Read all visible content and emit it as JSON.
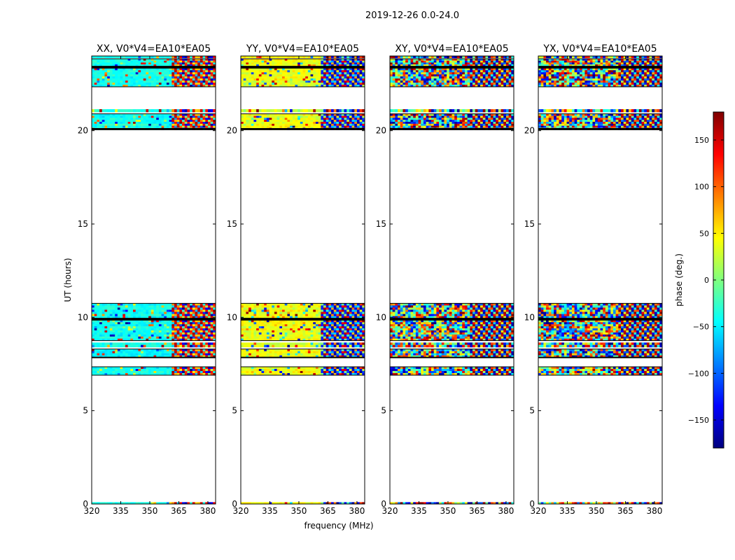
{
  "title": "2019-12-26 0.0-24.0",
  "xlabel": "frequency (MHz)",
  "ylabel": "UT (hours)",
  "colorbar": {
    "label": "phase (deg.)",
    "range": [
      -180,
      180
    ],
    "ticks": [
      150,
      100,
      50,
      0,
      -50,
      -100,
      -150
    ],
    "tick_labels": [
      "150",
      "100",
      "50",
      "0",
      "−50",
      "−100",
      "−150"
    ],
    "colormap": "jet",
    "colors": [
      "#00007f",
      "#0000ff",
      "#007fff",
      "#00ffff",
      "#7fff7f",
      "#ffff00",
      "#ff7f00",
      "#ff0000",
      "#7f0000"
    ]
  },
  "chart_data": {
    "type": "heatmap",
    "title": "2019-12-26 0.0-24.0",
    "xlabel": "frequency (MHz)",
    "ylabel": "UT (hours)",
    "xlim": [
      320,
      384
    ],
    "ylim": [
      0,
      24
    ],
    "xticks": [
      320,
      335,
      350,
      365,
      380
    ],
    "xtick_labels": [
      "320",
      "335",
      "350",
      "365",
      "380"
    ],
    "yticks": [
      0,
      5,
      10,
      15,
      20
    ],
    "ytick_labels": [
      "0",
      "5",
      "10",
      "15",
      "20"
    ],
    "value_label": "phase (deg.)",
    "value_range": [
      -180,
      180
    ],
    "panels": [
      {
        "name": "XX",
        "title": "XX, V0*V4=EA10*EA05",
        "base_phase": -40,
        "spread": 25,
        "noise": 0.15
      },
      {
        "name": "YY",
        "title": "YY, V0*V4=EA10*EA05",
        "base_phase": 40,
        "spread": 30,
        "noise": 0.15
      },
      {
        "name": "XY",
        "title": "XY, V0*V4=EA10*EA05",
        "base_phase": 0,
        "spread": 180,
        "noise": 0.9
      },
      {
        "name": "YX",
        "title": "YX, V0*V4=EA10*EA05",
        "base_phase": 0,
        "spread": 180,
        "noise": 0.9
      }
    ],
    "fringe_start_mhz": 361,
    "data_segments_ut": [
      [
        0.0,
        0.1
      ],
      [
        6.9,
        7.35
      ],
      [
        7.85,
        8.3
      ],
      [
        8.4,
        8.65
      ],
      [
        8.75,
        9.85
      ],
      [
        9.95,
        10.75
      ],
      [
        20.05,
        20.9
      ],
      [
        21.0,
        21.15
      ],
      [
        22.35,
        23.35
      ],
      [
        23.45,
        23.85
      ],
      [
        23.9,
        24.0
      ]
    ],
    "black_lines_ut": [
      7.85,
      9.9,
      20.1,
      23.4
    ],
    "white_gaps_ut": [
      8.35,
      8.7
    ]
  }
}
